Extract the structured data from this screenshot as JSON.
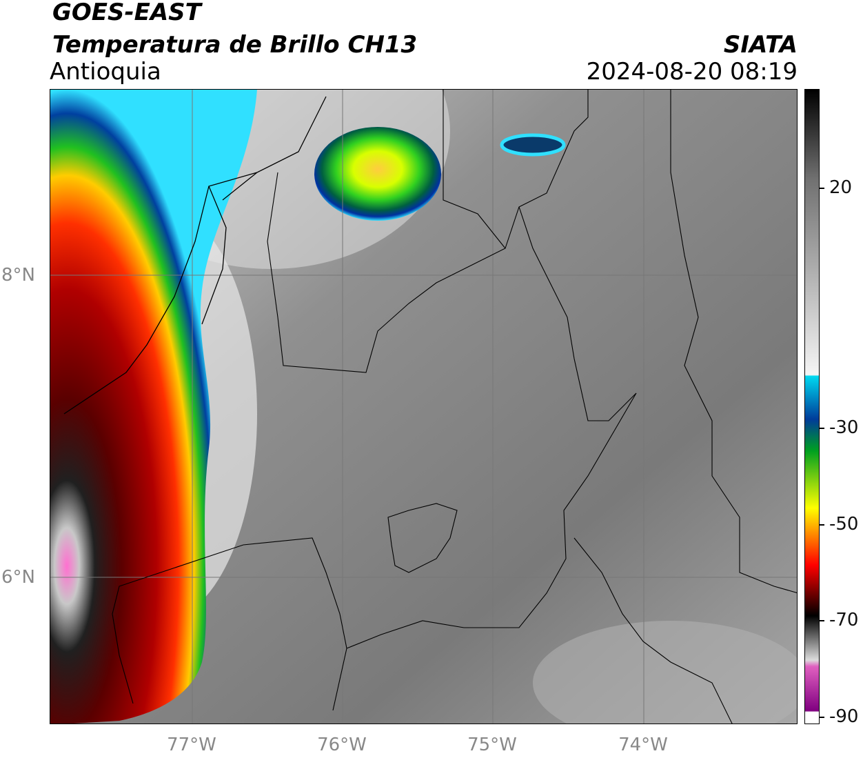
{
  "header": {
    "satellite": "GOES-EAST",
    "product": "Temperatura de Brillo CH13",
    "region": "Antioquia",
    "organization": "SIATA",
    "datetime": "2024-08-20 08:19"
  },
  "map": {
    "lat_labels": [
      "8°N",
      "6°N"
    ],
    "lon_labels": [
      "77°W",
      "76°W",
      "75°W",
      "74°W"
    ],
    "gridlines": true
  },
  "colorbar": {
    "tick_labels": [
      "20",
      "-30",
      "-50",
      "-70",
      "-90"
    ],
    "stops": [
      "#000000",
      "#707070",
      "#f5f5f5",
      "#00d8f0",
      "#003c9a",
      "#00a020",
      "#ffff00",
      "#ff0000",
      "#400000",
      "#000000",
      "#dcdcdc",
      "#e060c0",
      "#800080",
      "#ffffff"
    ],
    "units_note": ""
  }
}
